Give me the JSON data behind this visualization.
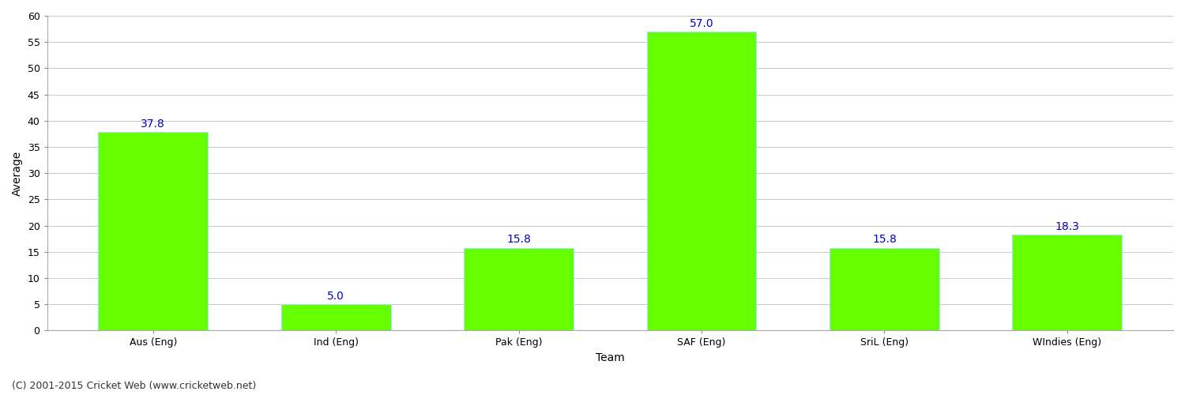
{
  "categories": [
    "Aus (Eng)",
    "Ind (Eng)",
    "Pak (Eng)",
    "SAF (Eng)",
    "SriL (Eng)",
    "WIndies (Eng)"
  ],
  "values": [
    37.8,
    5.0,
    15.8,
    57.0,
    15.8,
    18.3
  ],
  "bar_color": "#66ff00",
  "bar_edge_color": "#aaddff",
  "xlabel": "Team",
  "ylabel": "Average",
  "ylim": [
    0,
    60
  ],
  "yticks": [
    0,
    5,
    10,
    15,
    20,
    25,
    30,
    35,
    40,
    45,
    50,
    55,
    60
  ],
  "label_color": "#0000cc",
  "label_fontsize": 10,
  "axis_fontsize": 10,
  "tick_fontsize": 9,
  "background_color": "#ffffff",
  "grid_color": "#cccccc",
  "footer_text": "(C) 2001-2015 Cricket Web (www.cricketweb.net)",
  "footer_fontsize": 9,
  "bar_width": 0.6
}
